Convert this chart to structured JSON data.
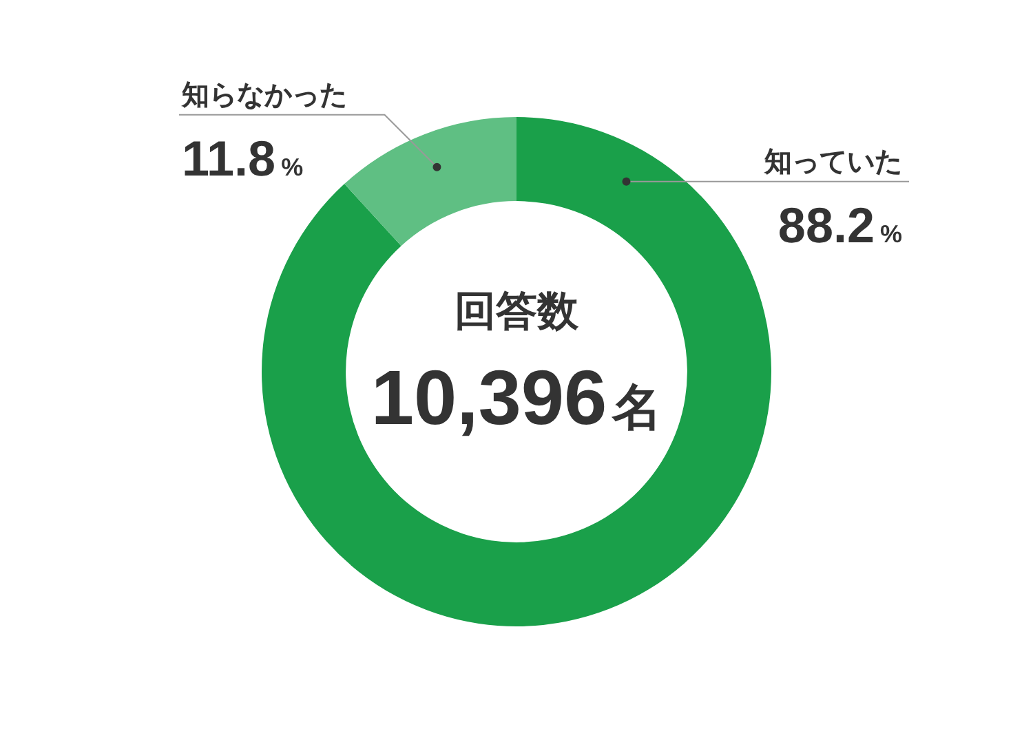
{
  "chart_data": {
    "type": "donut",
    "categories": [
      "知っていた",
      "知らなかった"
    ],
    "values": [
      88.2,
      11.8
    ],
    "colors": [
      "#1aa04a",
      "#5fbf83"
    ],
    "value_labels": [
      "88.2%",
      "11.8%"
    ],
    "annotations": [
      "回答数",
      "10,396名"
    ],
    "legend": false
  }
}
